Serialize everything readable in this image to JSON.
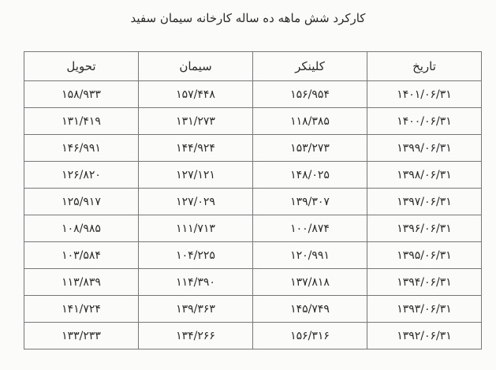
{
  "title": "کارکرد شش ماهه ده ساله کارخانه سیمان سفید",
  "table": {
    "headers": [
      "تاریخ",
      "کلینکر",
      "سیمان",
      "تحویل"
    ],
    "rows": [
      [
        "۱۴۰۱/۰۶/۳۱",
        "۱۵۶/۹۵۴",
        "۱۵۷/۴۴۸",
        "۱۵۸/۹۳۳"
      ],
      [
        "۱۴۰۰/۰۶/۳۱",
        "۱۱۸/۳۸۵",
        "۱۳۱/۲۷۳",
        "۱۳۱/۴۱۹"
      ],
      [
        "۱۳۹۹/۰۶/۳۱",
        "۱۵۳/۲۷۳",
        "۱۴۴/۹۲۴",
        "۱۴۶/۹۹۱"
      ],
      [
        "۱۳۹۸/۰۶/۳۱",
        "۱۴۸/۰۲۵",
        "۱۲۷/۱۲۱",
        "۱۲۶/۸۲۰"
      ],
      [
        "۱۳۹۷/۰۶/۳۱",
        "۱۳۹/۳۰۷",
        "۱۲۷/۰۲۹",
        "۱۲۵/۹۱۷"
      ],
      [
        "۱۳۹۶/۰۶/۳۱",
        "۱۰۰/۸۷۴",
        "۱۱۱/۷۱۳",
        "۱۰۸/۹۸۵"
      ],
      [
        "۱۳۹۵/۰۶/۳۱",
        "۱۲۰/۹۹۱",
        "۱۰۴/۲۲۵",
        "۱۰۳/۵۸۴"
      ],
      [
        "۱۳۹۴/۰۶/۳۱",
        "۱۳۷/۸۱۸",
        "۱۱۴/۳۹۰",
        "۱۱۳/۸۳۹"
      ],
      [
        "۱۳۹۳/۰۶/۳۱",
        "۱۴۵/۷۴۹",
        "۱۳۹/۳۶۳",
        "۱۴۱/۷۲۴"
      ],
      [
        "۱۳۹۲/۰۶/۳۱",
        "۱۵۶/۳۱۶",
        "۱۳۴/۲۶۶",
        "۱۳۳/۲۳۳"
      ]
    ]
  }
}
